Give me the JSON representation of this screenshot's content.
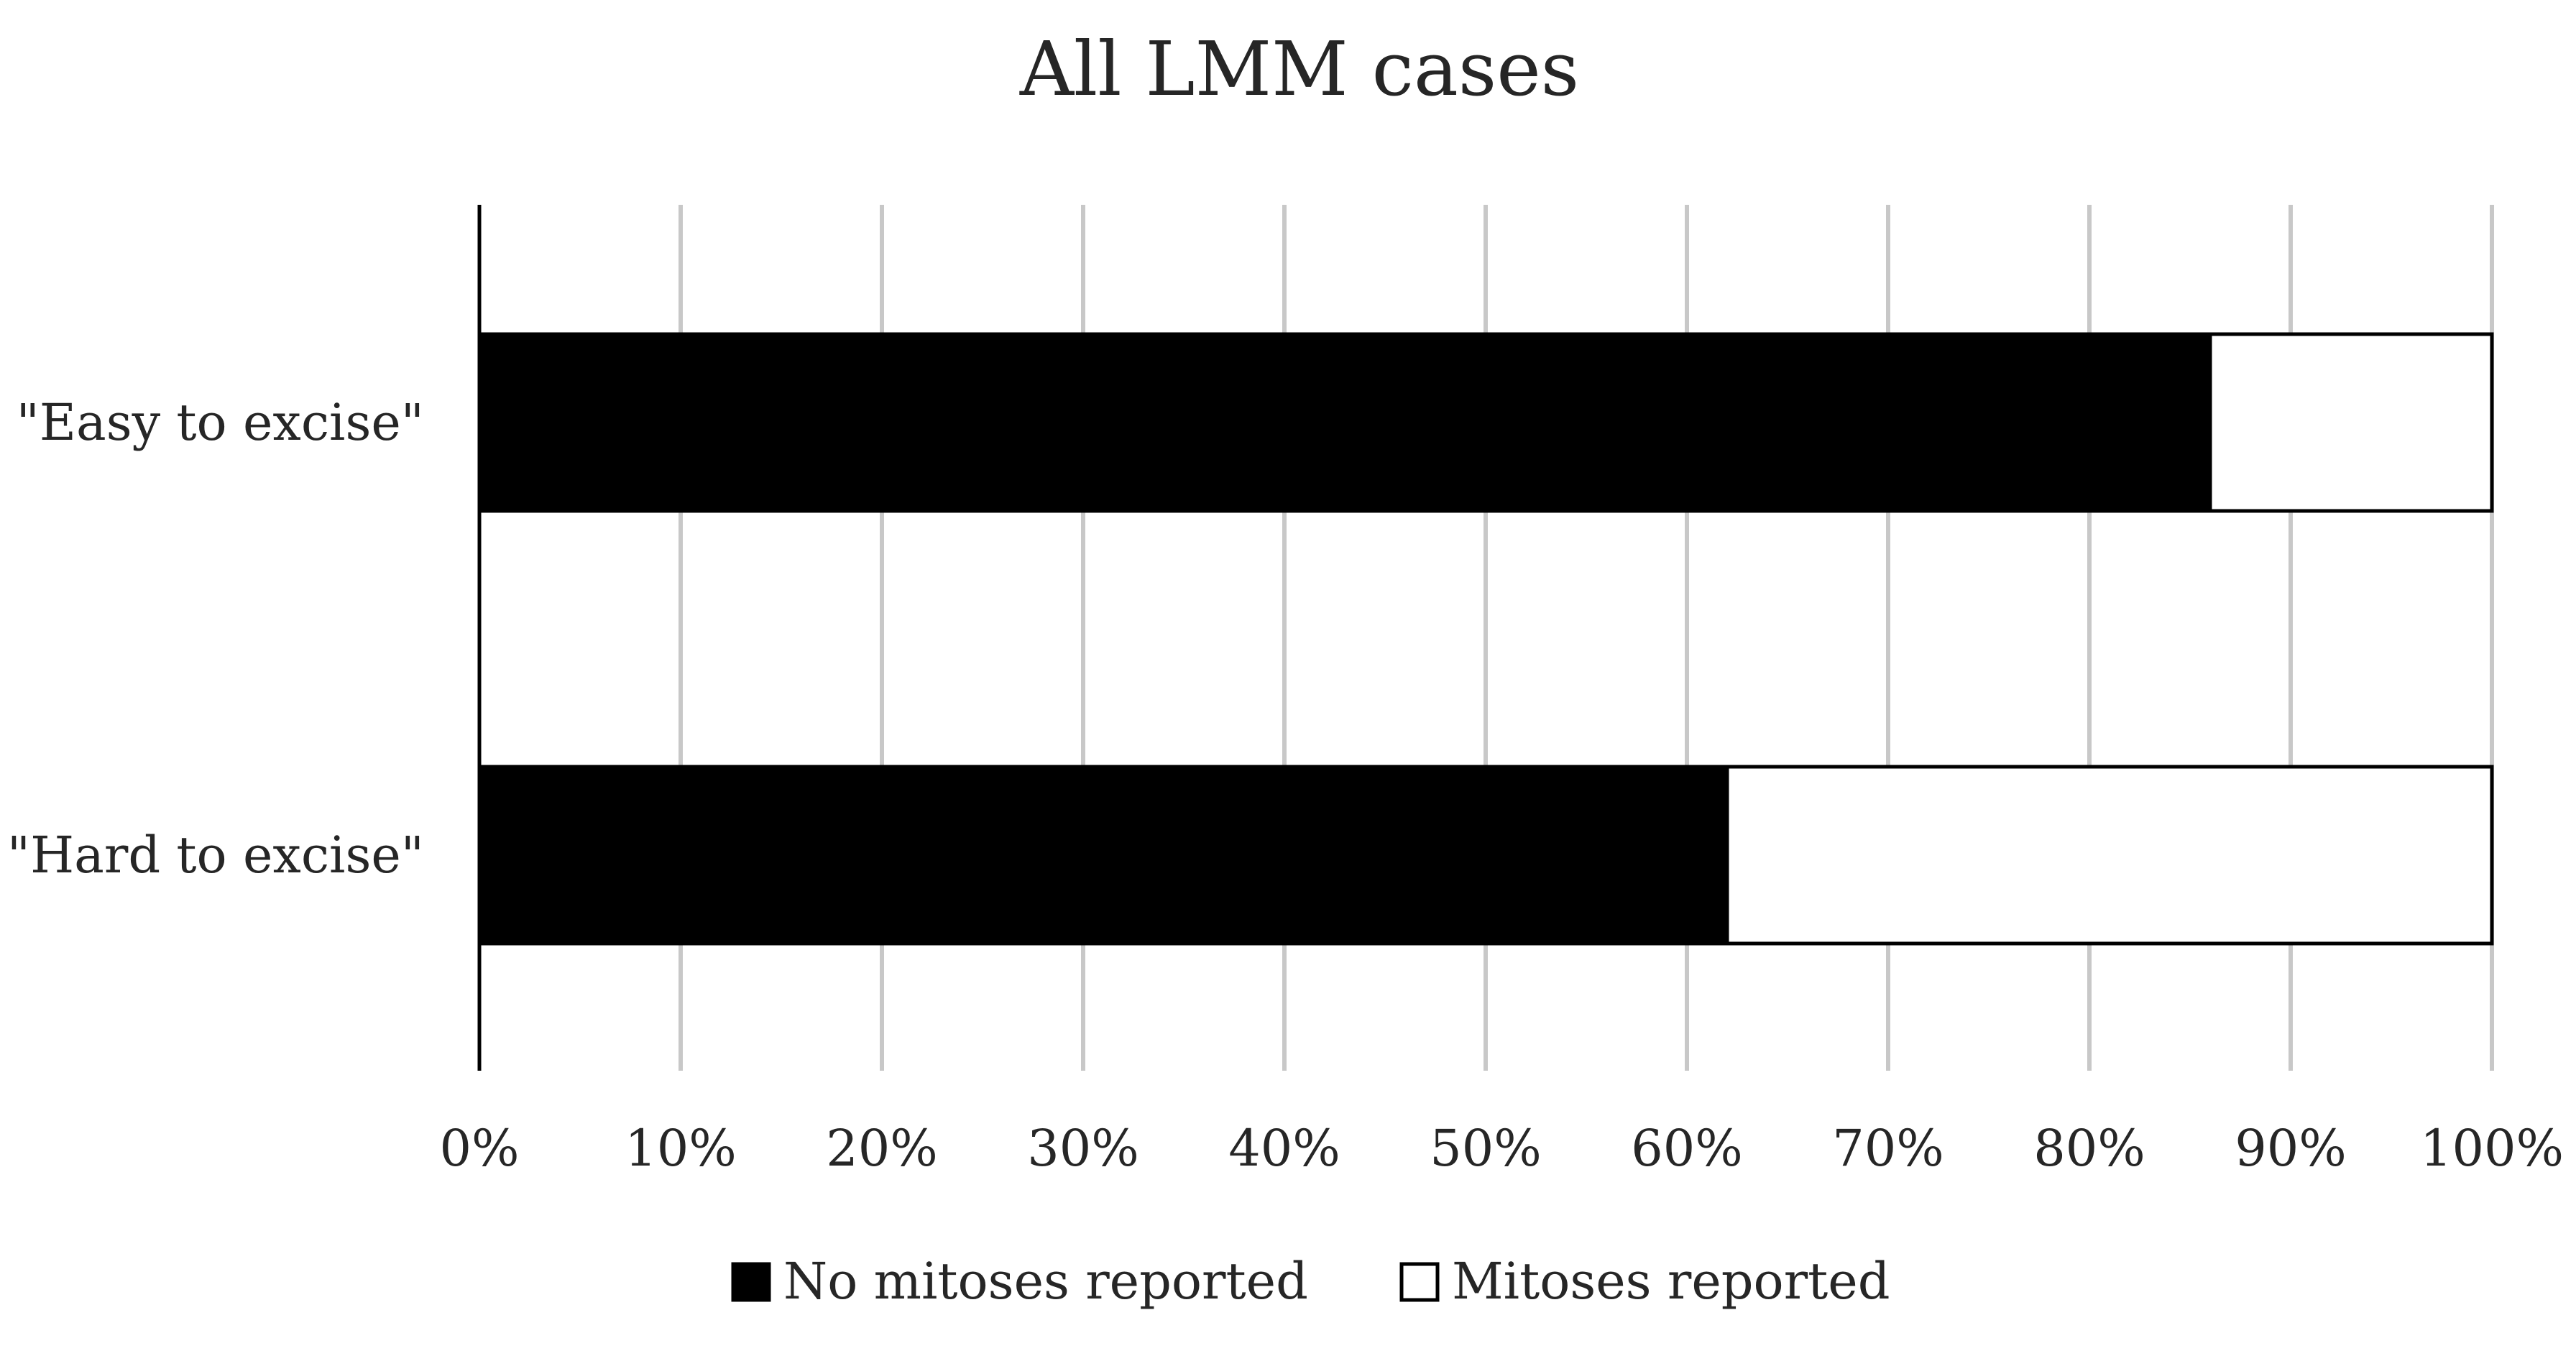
{
  "chart_data": {
    "type": "bar",
    "orientation": "horizontal",
    "stacked": true,
    "percent_stacked": true,
    "title": "All LMM cases",
    "categories": [
      "\"Easy to excise\"",
      "\"Hard to excise\""
    ],
    "series": [
      {
        "name": "No mitoses reported",
        "values": [
          86,
          62
        ],
        "color": "#000000"
      },
      {
        "name": "Mitoses reported",
        "values": [
          14,
          38
        ],
        "color": "#ffffff"
      }
    ],
    "x_ticks": [
      "0%",
      "10%",
      "20%",
      "30%",
      "40%",
      "50%",
      "60%",
      "70%",
      "80%",
      "90%",
      "100%"
    ],
    "xlim": [
      0,
      100
    ],
    "grid": true,
    "legend_position": "bottom"
  },
  "colors": {
    "gridline": "#c8c8c8",
    "axis": "#000000",
    "text": "#262626"
  }
}
